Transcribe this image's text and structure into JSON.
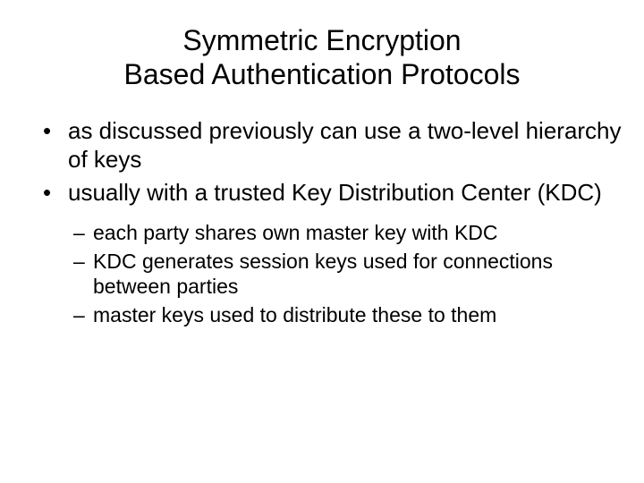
{
  "slide": {
    "background_color": "#ffffff",
    "text_color": "#000000",
    "font_family": "Arial",
    "title": {
      "line1": "Symmetric Encryption",
      "line2": "Based Authentication Protocols",
      "fontsize": 32,
      "align": "center",
      "weight": "normal"
    },
    "bullets": [
      {
        "text": "as discussed previously can use a two-level hierarchy of keys",
        "fontsize": 26
      },
      {
        "text": "usually with a trusted Key Distribution Center (KDC)",
        "fontsize": 26,
        "sub": [
          {
            "text": "each party shares own master key with KDC",
            "fontsize": 23
          },
          {
            "text": "KDC generates session keys used for connections between parties",
            "fontsize": 23
          },
          {
            "text": "master keys used to distribute these to them",
            "fontsize": 23
          }
        ]
      }
    ],
    "bullet_marker_l1": "•",
    "bullet_marker_l2": "–"
  }
}
